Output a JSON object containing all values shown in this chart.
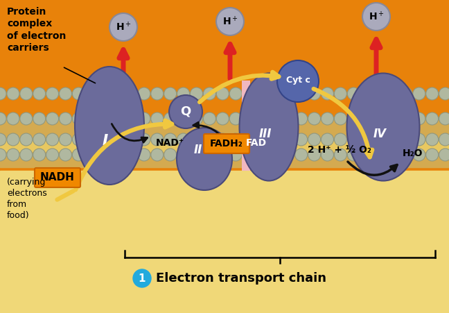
{
  "bg_top_color": "#E8820A",
  "bg_bottom_color": "#F0D878",
  "mem_outer_color": "#D4AA50",
  "mem_inner_color": "#E8C860",
  "sphere_color": "#AABB88",
  "sphere_ec": "#889966",
  "protein_color": "#6B6B9B",
  "protein_dark": "#4A4A7A",
  "title": "Electron transport chain",
  "title_num": "1",
  "title_num_color": "#22AADD",
  "labels": {
    "complex_I": "I",
    "complex_II": "II",
    "complex_III": "III",
    "complex_IV": "IV",
    "Q": "Q",
    "Cyt_c": "Cyt c",
    "NADH": "NADH",
    "NAD": "NAD⁺",
    "FADH2": "FADH₂",
    "FAD": "FAD",
    "reaction": "2 H⁺ + ½ O₂",
    "H2O": "H₂O",
    "protein_text": "Protein\ncomplex\nof electron\ncarriers",
    "carrying": "(carrying\nelectrons\nfrom\nfood)"
  },
  "colors": {
    "red_arrow": "#DD2222",
    "yellow_path": "#F0C840",
    "black": "#111111",
    "orange_box": "#F08800",
    "orange_box_ec": "#CC6600",
    "pink_bar": "#F0B8C0",
    "nadh_yellow": "#F0C840",
    "cytc_blue": "#5566AA",
    "cytc_ec": "#334488",
    "hplus_gray": "#AAAABC",
    "hplus_ec": "#888898"
  }
}
